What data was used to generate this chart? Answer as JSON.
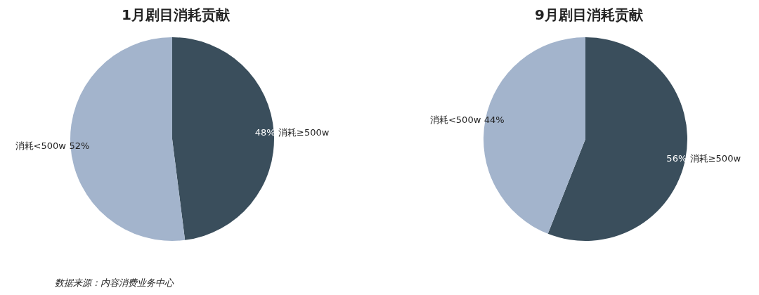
{
  "chart_data": [
    {
      "type": "pie",
      "title": "1月剧目消耗贡献",
      "categories": [
        "消耗≥500w",
        "消耗<500w"
      ],
      "values": [
        48,
        52
      ],
      "colors": [
        "#3a4e5c",
        "#a3b4cc"
      ],
      "value_labels": [
        "48%",
        "52%"
      ],
      "annotations": [
        "数据来源：内容消费业务中心"
      ]
    },
    {
      "type": "pie",
      "title": "9月剧目消耗贡献",
      "categories": [
        "消耗≥500w",
        "消耗<500w"
      ],
      "values": [
        56,
        44
      ],
      "colors": [
        "#3a4e5c",
        "#a3b4cc"
      ],
      "value_labels": [
        "56%",
        "44%"
      ]
    }
  ]
}
